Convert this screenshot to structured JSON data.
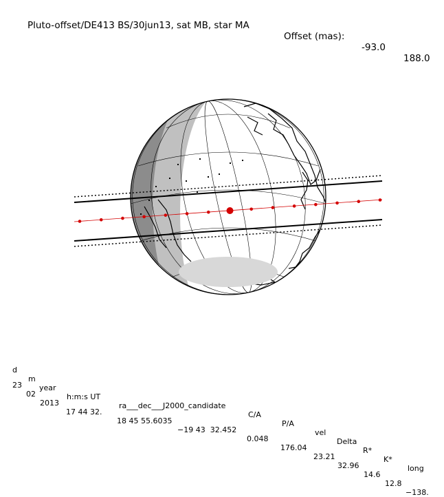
{
  "title": {
    "label": "Pluto-offset/DE413 BS/30jun13, sat MB, star MA",
    "offset_label": "Offset (mas):",
    "offset_x": "-93.0",
    "offset_y": "188.0"
  },
  "table": {
    "headers": [
      "d",
      "m",
      "year",
      "h:m:s UT",
      "ra___dec___J2000_candidate",
      "C/A",
      "P/A",
      "vel",
      "Delta",
      "R*",
      "K*",
      "long"
    ],
    "values": [
      "23",
      "02",
      "2013",
      "17 44 32.",
      "18 45 55.6035",
      "−19 43  32.452",
      "0.048",
      "176.04",
      "23.21",
      "32.96",
      "14.6",
      "12.8",
      "−138."
    ]
  },
  "map": {
    "projection": "orthographic",
    "colors": {
      "night_dark": "#8c8c8c",
      "night_mid": "#c0c0c0",
      "twilight": "#dcdcdc",
      "track": "#d40000",
      "ink": "#000000"
    },
    "track_points": 15,
    "central_point_index": 7
  }
}
